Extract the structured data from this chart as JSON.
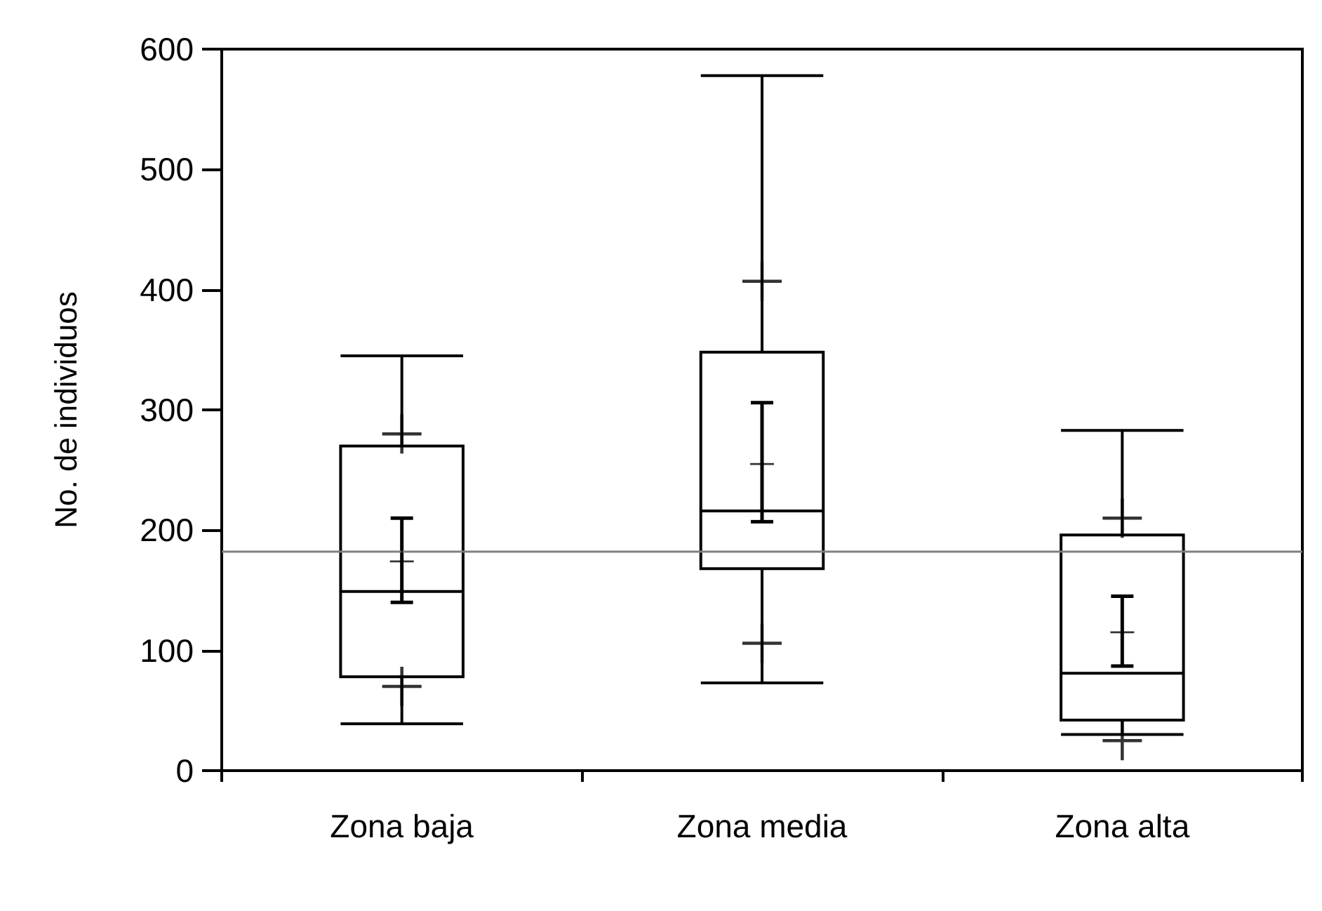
{
  "chart_data": {
    "type": "box",
    "ylabel": "No. de individuos",
    "categories": [
      "Zona baja",
      "Zona media",
      "Zona alta"
    ],
    "marker": "cross",
    "ylim": [
      0,
      600
    ],
    "yticks": [
      0,
      100,
      200,
      300,
      400,
      500,
      600
    ],
    "grid": false,
    "series": [
      {
        "type": "box",
        "color": "#000000",
        "boxes": [
          {
            "low": 39,
            "q1": 78,
            "median": 149,
            "q3": 270,
            "high": 345
          },
          {
            "low": 73,
            "q1": 168,
            "median": 216,
            "q3": 348,
            "high": 578
          },
          {
            "low": 30,
            "q1": 42,
            "median": 81,
            "q3": 196,
            "high": 283
          }
        ]
      },
      {
        "type": "scatter",
        "color": "#000000",
        "x": [
          "Zona baja",
          "Zona media",
          "Zona alta"
        ],
        "values": [
          174,
          255,
          115
        ],
        "errors": [
          [
            140,
            210
          ],
          [
            207,
            306
          ],
          [
            87,
            145
          ]
        ]
      },
      {
        "type": "scatter",
        "color": "#000000",
        "x": [
          "Zona baja",
          "Zona media",
          "Zona alta"
        ],
        "values": [
          280,
          407,
          210
        ]
      },
      {
        "type": "scatter",
        "color": "#000000",
        "x": [
          "Zona baja",
          "Zona media",
          "Zona alta"
        ],
        "values": [
          70,
          106,
          25
        ]
      }
    ],
    "ref_lines": [
      {
        "axis": "y",
        "value": 182,
        "color": "#808080"
      }
    ]
  }
}
